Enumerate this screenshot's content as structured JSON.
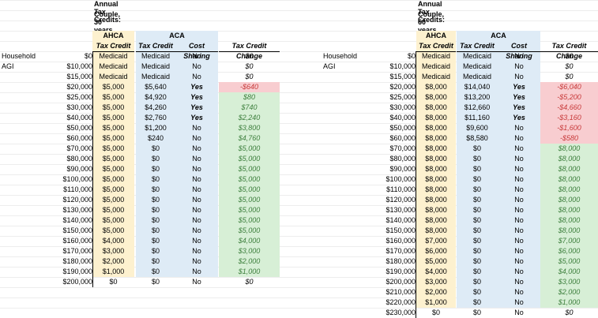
{
  "left": {
    "title1": "Annual Tax Credits:",
    "title2": "Couple, 30 years old",
    "group_ahca": "AHCA",
    "group_aca": "ACA",
    "col_tax_credit": "Tax Credit",
    "col_aca_tax_credit": "Tax Credit",
    "col_cost_sharing": "Cost Sharing",
    "col_change": "Tax Credit Change",
    "agi_label": "Household AGI",
    "rows": [
      {
        "agi": "$0",
        "ahca": "Medicaid",
        "aca": "Medicaid",
        "cs": "No",
        "change": "$0",
        "kind": "zero"
      },
      {
        "agi": "$10,000",
        "ahca": "Medicaid",
        "aca": "Medicaid",
        "cs": "No",
        "change": "$0",
        "kind": "zero"
      },
      {
        "agi": "$15,000",
        "ahca": "Medicaid",
        "aca": "Medicaid",
        "cs": "No",
        "change": "$0",
        "kind": "zero"
      },
      {
        "agi": "$20,000",
        "ahca": "$5,000",
        "aca": "$5,640",
        "cs": "Yes",
        "change": "-$640",
        "kind": "neg"
      },
      {
        "agi": "$25,000",
        "ahca": "$5,000",
        "aca": "$4,920",
        "cs": "Yes",
        "change": "$80",
        "kind": "pos"
      },
      {
        "agi": "$30,000",
        "ahca": "$5,000",
        "aca": "$4,260",
        "cs": "Yes",
        "change": "$740",
        "kind": "pos"
      },
      {
        "agi": "$40,000",
        "ahca": "$5,000",
        "aca": "$2,760",
        "cs": "Yes",
        "change": "$2,240",
        "kind": "pos"
      },
      {
        "agi": "$50,000",
        "ahca": "$5,000",
        "aca": "$1,200",
        "cs": "No",
        "change": "$3,800",
        "kind": "pos"
      },
      {
        "agi": "$60,000",
        "ahca": "$5,000",
        "aca": "$240",
        "cs": "No",
        "change": "$4,760",
        "kind": "pos"
      },
      {
        "agi": "$70,000",
        "ahca": "$5,000",
        "aca": "$0",
        "cs": "No",
        "change": "$5,000",
        "kind": "pos"
      },
      {
        "agi": "$80,000",
        "ahca": "$5,000",
        "aca": "$0",
        "cs": "No",
        "change": "$5,000",
        "kind": "pos"
      },
      {
        "agi": "$90,000",
        "ahca": "$5,000",
        "aca": "$0",
        "cs": "No",
        "change": "$5,000",
        "kind": "pos"
      },
      {
        "agi": "$100,000",
        "ahca": "$5,000",
        "aca": "$0",
        "cs": "No",
        "change": "$5,000",
        "kind": "pos"
      },
      {
        "agi": "$110,000",
        "ahca": "$5,000",
        "aca": "$0",
        "cs": "No",
        "change": "$5,000",
        "kind": "pos"
      },
      {
        "agi": "$120,000",
        "ahca": "$5,000",
        "aca": "$0",
        "cs": "No",
        "change": "$5,000",
        "kind": "pos"
      },
      {
        "agi": "$130,000",
        "ahca": "$5,000",
        "aca": "$0",
        "cs": "No",
        "change": "$5,000",
        "kind": "pos"
      },
      {
        "agi": "$140,000",
        "ahca": "$5,000",
        "aca": "$0",
        "cs": "No",
        "change": "$5,000",
        "kind": "pos"
      },
      {
        "agi": "$150,000",
        "ahca": "$5,000",
        "aca": "$0",
        "cs": "No",
        "change": "$5,000",
        "kind": "pos"
      },
      {
        "agi": "$160,000",
        "ahca": "$4,000",
        "aca": "$0",
        "cs": "No",
        "change": "$4,000",
        "kind": "pos"
      },
      {
        "agi": "$170,000",
        "ahca": "$3,000",
        "aca": "$0",
        "cs": "No",
        "change": "$3,000",
        "kind": "pos"
      },
      {
        "agi": "$180,000",
        "ahca": "$2,000",
        "aca": "$0",
        "cs": "No",
        "change": "$2,000",
        "kind": "pos"
      },
      {
        "agi": "$190,000",
        "ahca": "$1,000",
        "aca": "$0",
        "cs": "No",
        "change": "$1,000",
        "kind": "pos"
      },
      {
        "agi": "$200,000",
        "ahca": "$0",
        "aca": "$0",
        "cs": "No",
        "change": "$0",
        "kind": "zero"
      }
    ]
  },
  "right": {
    "title1": "Annual Tax Credits:",
    "title2": "Couple, 60 years old",
    "group_ahca": "AHCA",
    "group_aca": "ACA",
    "col_tax_credit": "Tax Credit",
    "col_aca_tax_credit": "Tax Credit",
    "col_cost_sharing": "Cost Sharing",
    "col_change": "Tax Credit Change",
    "agi_label": "Household AGI",
    "rows": [
      {
        "agi": "$0",
        "ahca": "Medicaid",
        "aca": "Medicaid",
        "cs": "No",
        "change": "$0",
        "kind": "zero"
      },
      {
        "agi": "$10,000",
        "ahca": "Medicaid",
        "aca": "Medicaid",
        "cs": "No",
        "change": "$0",
        "kind": "zero"
      },
      {
        "agi": "$15,000",
        "ahca": "Medicaid",
        "aca": "Medicaid",
        "cs": "No",
        "change": "$0",
        "kind": "zero"
      },
      {
        "agi": "$20,000",
        "ahca": "$8,000",
        "aca": "$14,040",
        "cs": "Yes",
        "change": "-$6,040",
        "kind": "neg"
      },
      {
        "agi": "$25,000",
        "ahca": "$8,000",
        "aca": "$13,200",
        "cs": "Yes",
        "change": "-$5,200",
        "kind": "neg"
      },
      {
        "agi": "$30,000",
        "ahca": "$8,000",
        "aca": "$12,660",
        "cs": "Yes",
        "change": "-$4,660",
        "kind": "neg"
      },
      {
        "agi": "$40,000",
        "ahca": "$8,000",
        "aca": "$11,160",
        "cs": "Yes",
        "change": "-$3,160",
        "kind": "neg"
      },
      {
        "agi": "$50,000",
        "ahca": "$8,000",
        "aca": "$9,600",
        "cs": "No",
        "change": "-$1,600",
        "kind": "neg"
      },
      {
        "agi": "$60,000",
        "ahca": "$8,000",
        "aca": "$8,580",
        "cs": "No",
        "change": "-$580",
        "kind": "neg"
      },
      {
        "agi": "$70,000",
        "ahca": "$8,000",
        "aca": "$0",
        "cs": "No",
        "change": "$8,000",
        "kind": "pos"
      },
      {
        "agi": "$80,000",
        "ahca": "$8,000",
        "aca": "$0",
        "cs": "No",
        "change": "$8,000",
        "kind": "pos"
      },
      {
        "agi": "$90,000",
        "ahca": "$8,000",
        "aca": "$0",
        "cs": "No",
        "change": "$8,000",
        "kind": "pos"
      },
      {
        "agi": "$100,000",
        "ahca": "$8,000",
        "aca": "$0",
        "cs": "No",
        "change": "$8,000",
        "kind": "pos"
      },
      {
        "agi": "$110,000",
        "ahca": "$8,000",
        "aca": "$0",
        "cs": "No",
        "change": "$8,000",
        "kind": "pos"
      },
      {
        "agi": "$120,000",
        "ahca": "$8,000",
        "aca": "$0",
        "cs": "No",
        "change": "$8,000",
        "kind": "pos"
      },
      {
        "agi": "$130,000",
        "ahca": "$8,000",
        "aca": "$0",
        "cs": "No",
        "change": "$8,000",
        "kind": "pos"
      },
      {
        "agi": "$140,000",
        "ahca": "$8,000",
        "aca": "$0",
        "cs": "No",
        "change": "$8,000",
        "kind": "pos"
      },
      {
        "agi": "$150,000",
        "ahca": "$8,000",
        "aca": "$0",
        "cs": "No",
        "change": "$8,000",
        "kind": "pos"
      },
      {
        "agi": "$160,000",
        "ahca": "$7,000",
        "aca": "$0",
        "cs": "No",
        "change": "$7,000",
        "kind": "pos"
      },
      {
        "agi": "$170,000",
        "ahca": "$6,000",
        "aca": "$0",
        "cs": "No",
        "change": "$6,000",
        "kind": "pos"
      },
      {
        "agi": "$180,000",
        "ahca": "$5,000",
        "aca": "$0",
        "cs": "No",
        "change": "$5,000",
        "kind": "pos"
      },
      {
        "agi": "$190,000",
        "ahca": "$4,000",
        "aca": "$0",
        "cs": "No",
        "change": "$4,000",
        "kind": "pos"
      },
      {
        "agi": "$200,000",
        "ahca": "$3,000",
        "aca": "$0",
        "cs": "No",
        "change": "$3,000",
        "kind": "pos"
      },
      {
        "agi": "$210,000",
        "ahca": "$2,000",
        "aca": "$0",
        "cs": "No",
        "change": "$2,000",
        "kind": "pos"
      },
      {
        "agi": "$220,000",
        "ahca": "$1,000",
        "aca": "$0",
        "cs": "No",
        "change": "$1,000",
        "kind": "pos"
      },
      {
        "agi": "$230,000",
        "ahca": "$0",
        "aca": "$0",
        "cs": "No",
        "change": "$0",
        "kind": "zero"
      }
    ]
  }
}
